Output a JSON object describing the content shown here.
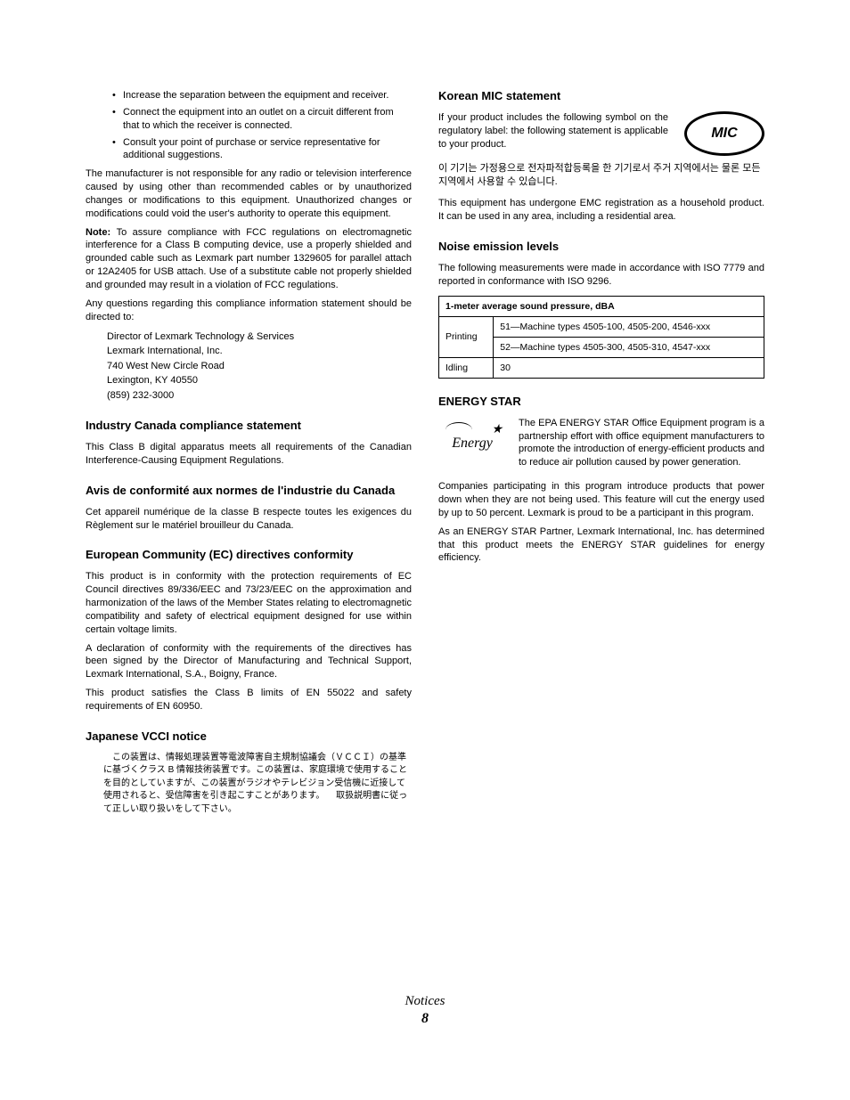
{
  "left": {
    "bullets": [
      "Increase the separation between the equipment and receiver.",
      "Connect the equipment into an outlet on a circuit different from that to which the receiver is connected.",
      "Consult your point of purchase or service representative for additional suggestions."
    ],
    "p1": "The manufacturer is not responsible for any radio or television interference caused by using other than recommended cables or by unauthorized changes or modifications to this equipment. Unauthorized changes or modifications could void the user's authority to operate this equipment.",
    "note_label": "Note: ",
    "note_body": "To assure compliance with FCC regulations on electromagnetic interference for a Class B computing device, use a properly shielded and grounded cable such as Lexmark part number 1329605 for parallel attach or 12A2405 for USB attach. Use of a substitute cable not properly shielded and grounded may result in a violation of FCC regulations.",
    "p3": "Any questions regarding this compliance information statement should be directed to:",
    "address": [
      "Director of Lexmark Technology & Services",
      "Lexmark International, Inc.",
      "740 West New Circle Road",
      "Lexington, KY   40550",
      "(859) 232-3000"
    ],
    "h_canada": "Industry Canada compliance statement",
    "p_canada": "This Class B digital apparatus meets all requirements of the Canadian Interference-Causing Equipment Regulations.",
    "h_avis": "Avis de conformité aux normes de l'industrie du Canada",
    "p_avis": "Cet appareil numérique de la classe B respecte toutes les exigences du Règlement sur le matériel brouilleur du Canada.",
    "h_ec": "European Community (EC) directives conformity",
    "p_ec1": "This product is in conformity with the protection requirements of EC Council directives 89/336/EEC and 73/23/EEC on the approximation and harmonization of the laws of the Member States relating to electromagnetic compatibility and safety of electrical equipment designed for use within certain voltage limits.",
    "p_ec2": "A declaration of conformity with the requirements of the directives has been signed by the Director of Manufacturing and Technical Support, Lexmark International, S.A., Boigny, France.",
    "p_ec3": "This product satisfies the Class B limits of EN 55022 and safety requirements of EN 60950.",
    "h_vcci": "Japanese VCCI notice",
    "vcci_text": "　この装置は、情報処理装置等電波障害自主規制協議会（ＶＣＣＩ）の基準に基づくクラス B 情報技術装置です。この装置は、家庭環境で使用することを目的としていますが、この装置がラジオやテレビジョン受信機に近接して使用されると、受信障害を引き起こすことがあります。\n　取扱説明書に従って正しい取り扱いをして下さい。"
  },
  "right": {
    "h_mic": "Korean MIC statement",
    "mic_intro": "If your product includes the following symbol on the regulatory label: the following statement is applicable to your product.",
    "mic_logo": "MIC",
    "korean_text": "이 기기는 가정용으로 전자파적합등록을 한 기기로서 주거 지역에서는 물론 모든 지역에서 사용할 수 있습니다.",
    "mic_p2": "This equipment has undergone EMC registration as a household product. It can be used in any area, including a residential area.",
    "h_noise": "Noise emission levels",
    "p_noise": "The following measurements were made in accordance with ISO 7779 and reported in conformance with ISO 9296.",
    "table": {
      "header": "1-meter average sound pressure, dBA",
      "rows": [
        {
          "label": "Printing",
          "cells": [
            "51—Machine types 4505-100, 4505-200, 4546-xxx",
            "52—Machine types 4505-300, 4505-310, 4547-xxx"
          ]
        },
        {
          "label": "Idling",
          "cells": [
            "30"
          ]
        }
      ]
    },
    "h_energy": "ENERGY STAR",
    "energy_logo": "Energy",
    "p_energy1": "The EPA ENERGY STAR Office Equipment program is a partnership effort with office equipment manufacturers to promote the introduction of energy-efficient products and to reduce air pollution caused by power generation.",
    "p_energy2": "Companies participating in this program introduce products that power down when they are not being used. This feature will cut the energy used by up to 50 percent. Lexmark is proud to be a participant in this program.",
    "p_energy3": "As an ENERGY STAR Partner, Lexmark International, Inc. has determined that this product meets the ENERGY STAR guidelines for energy efficiency."
  },
  "footer": {
    "title": "Notices",
    "page": "8"
  }
}
